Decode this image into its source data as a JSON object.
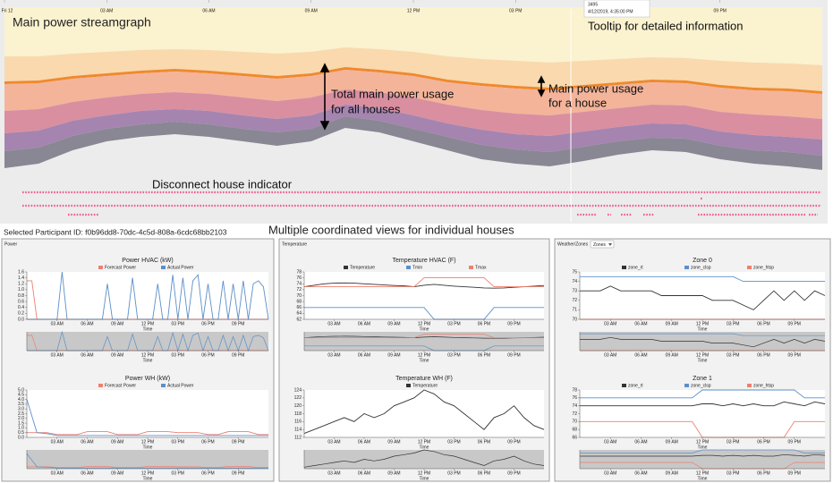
{
  "streamgraph": {
    "title": "Main power streamgraph",
    "xlim": [
      0,
      24
    ],
    "ylim": [
      0,
      182
    ],
    "xticks": [
      {
        "value": 0,
        "label": "Fri 12"
      },
      {
        "value": 3,
        "label": "03 AM"
      },
      {
        "value": 6,
        "label": "06 AM"
      },
      {
        "value": 9,
        "label": "09 AM"
      },
      {
        "value": 12,
        "label": "12 PM"
      },
      {
        "value": 15,
        "label": "03 PM"
      },
      {
        "value": 18,
        "label": "06 PM"
      },
      {
        "value": 21,
        "label": "09 PM"
      }
    ],
    "layers": [
      {
        "color": "#fbf2cf",
        "values": [
          55,
          55,
          52,
          50,
          48,
          47,
          48,
          50,
          52,
          50,
          45,
          47,
          50,
          55,
          58,
          60,
          62,
          60,
          58,
          56,
          57,
          60,
          62,
          63,
          65
        ]
      },
      {
        "color": "#f9d9ad",
        "values": [
          28,
          27,
          25,
          24,
          23,
          22,
          23,
          24,
          25,
          24,
          22,
          23,
          24,
          26,
          27,
          28,
          28,
          27,
          26,
          25,
          25,
          27,
          28,
          28,
          29
        ]
      },
      {
        "color": "#f0892d",
        "values": [
          3,
          3,
          3,
          3,
          3,
          3,
          3,
          3,
          3,
          3,
          3,
          3,
          3,
          3,
          3,
          3,
          3,
          3,
          3,
          3,
          3,
          3,
          3,
          3,
          3
        ]
      },
      {
        "color": "#f3b49a",
        "values": [
          30,
          29,
          26,
          24,
          23,
          23,
          23,
          24,
          25,
          24,
          22,
          22,
          24,
          25,
          27,
          28,
          28,
          27,
          26,
          25,
          25,
          27,
          27,
          28,
          28
        ]
      },
      {
        "color": "#d98fa0",
        "values": [
          25,
          24,
          21,
          20,
          19,
          19,
          19,
          20,
          20,
          20,
          17,
          18,
          20,
          21,
          22,
          23,
          23,
          22,
          21,
          21,
          21,
          22,
          23,
          23,
          23
        ]
      },
      {
        "color": "#a584b0",
        "values": [
          20,
          19,
          17,
          15,
          15,
          14,
          15,
          15,
          15,
          15,
          13,
          14,
          15,
          15,
          17,
          17,
          18,
          17,
          16,
          16,
          16,
          16,
          17,
          17,
          18
        ]
      },
      {
        "color": "#8a8794",
        "values": [
          19,
          18,
          16,
          14,
          14,
          14,
          14,
          14,
          15,
          14,
          13,
          13,
          14,
          15,
          16,
          16,
          16,
          16,
          15,
          14,
          15,
          15,
          15,
          16,
          16
        ]
      }
    ]
  },
  "tooltip": {
    "value": 3495,
    "time": "4/12/2019, 4:35:00 PM"
  },
  "annotations": {
    "tooltip": "Tooltip for detailed information",
    "total_1": "Total main power usage",
    "total_2": "for all houses",
    "house_1": "Main power usage",
    "house_2": "for a house",
    "disconnect": "Disconnect house indicator",
    "views": "Multiple coordinated views for individual houses"
  },
  "selected_participant": "Selected Participant ID: f0b96dd8-70dc-4c5d-808a-6cdc68bb2103",
  "time_axis": {
    "xlim": [
      0,
      24
    ],
    "label": "Time",
    "ticks": [
      {
        "value": 3,
        "label": "03 AM"
      },
      {
        "value": 6,
        "label": "06 AM"
      },
      {
        "value": 9,
        "label": "09 AM"
      },
      {
        "value": 12,
        "label": "12 PM"
      },
      {
        "value": 15,
        "label": "03 PM"
      },
      {
        "value": 18,
        "label": "06 PM"
      },
      {
        "value": 21,
        "label": "09 PM"
      }
    ]
  },
  "panels": [
    {
      "label": "Power",
      "charts": [
        {
          "title": "Power HVAC (kW)",
          "ylim": [
            0,
            1.6
          ],
          "yticks": [
            {
              "value": 0,
              "label": "0.0"
            },
            {
              "value": 0.2,
              "label": "0.2"
            },
            {
              "value": 0.4,
              "label": "0.4"
            },
            {
              "value": 0.6,
              "label": "0.6"
            },
            {
              "value": 0.8,
              "label": "0.8"
            },
            {
              "value": 1,
              "label": "1.0"
            },
            {
              "value": 1.2,
              "label": "1.2"
            },
            {
              "value": 1.4,
              "label": "1.4"
            },
            {
              "value": 1.6,
              "label": "1.6"
            }
          ],
          "series": [
            {
              "name": "Forecast Power",
              "color": "#ef7f6f",
              "values": [
                1.3,
                1.3,
                0,
                0,
                0,
                0,
                0,
                0,
                0,
                0,
                0,
                0,
                0,
                0,
                0,
                0,
                0,
                0,
                0,
                0,
                0,
                0,
                0,
                0,
                0,
                0,
                0,
                0,
                0,
                0,
                0,
                0,
                0,
                0,
                0,
                0,
                0,
                0,
                0,
                0,
                0,
                0,
                0,
                0,
                0,
                0,
                0,
                0,
                0
              ]
            },
            {
              "name": "Actual Power",
              "color": "#5b8fc9",
              "values": [
                0,
                0,
                0,
                0,
                0,
                0,
                0,
                1.6,
                0,
                0,
                0,
                0,
                0,
                0,
                0,
                0,
                1.2,
                0,
                0,
                0,
                0,
                1.4,
                0,
                0,
                0,
                0,
                1.2,
                0,
                0,
                1.5,
                0,
                1.4,
                0,
                1.3,
                1.5,
                0,
                1.2,
                0,
                0,
                1.3,
                0,
                1.2,
                0,
                1.3,
                0,
                1.2,
                1.3,
                1.1,
                0
              ]
            }
          ]
        },
        {
          "title": "Power WH (kW)",
          "ylim": [
            0,
            5
          ],
          "yticks": [
            {
              "value": 0,
              "label": "0.0"
            },
            {
              "value": 0.5,
              "label": "0.5"
            },
            {
              "value": 1,
              "label": "1.0"
            },
            {
              "value": 1.5,
              "label": "1.5"
            },
            {
              "value": 2,
              "label": "2.0"
            },
            {
              "value": 2.5,
              "label": "2.5"
            },
            {
              "value": 3,
              "label": "3.0"
            },
            {
              "value": 3.5,
              "label": "3.5"
            },
            {
              "value": 4,
              "label": "4.0"
            },
            {
              "value": 4.5,
              "label": "4.5"
            },
            {
              "value": 5,
              "label": "5.0"
            }
          ],
          "series": [
            {
              "name": "Forecast Power",
              "color": "#ef7f6f",
              "values": [
                0.5,
                0.5,
                0.5,
                0.3,
                0.3,
                0.3,
                0.6,
                0.6,
                0.6,
                0.3,
                0.3,
                0.3,
                0.6,
                0.6,
                0.6,
                0.5,
                0.5,
                0.5,
                0.3,
                0.3,
                0.6,
                0.6,
                0.6,
                0.3,
                0.3
              ]
            },
            {
              "name": "Actual Power",
              "color": "#5b8fc9",
              "values": [
                4.0,
                0.5,
                0.4,
                0.2,
                0.2,
                0.2,
                0.2,
                0.2,
                0.2,
                0.2,
                0.2,
                0.2,
                0.2,
                0.2,
                0.2,
                0.2,
                0.2,
                0.2,
                0.2,
                0.2,
                0.2,
                0.2,
                0.2,
                0.2,
                0.2
              ]
            }
          ]
        }
      ]
    },
    {
      "label": "Temperature",
      "charts": [
        {
          "title": "Temperature HVAC (F)",
          "ylim": [
            62,
            78
          ],
          "yticks": [
            62,
            64,
            66,
            68,
            70,
            72,
            74,
            76,
            78
          ],
          "series": [
            {
              "name": "Temperature",
              "color": "#333333",
              "values": [
                73,
                73.5,
                74,
                74.2,
                74.3,
                74.2,
                74,
                73.8,
                73.6,
                73.4,
                73.3,
                73,
                73.5,
                73.8,
                73.5,
                73.2,
                73,
                72.8,
                72.6,
                72.5,
                72.6,
                72.8,
                73,
                73.2,
                73.4
              ]
            },
            {
              "name": "Tmin",
              "color": "#5b8fc9",
              "values": [
                66,
                66,
                66,
                66,
                66,
                66,
                66,
                66,
                66,
                66,
                66,
                66,
                66,
                62,
                62,
                62,
                62,
                62,
                62,
                66,
                66,
                66,
                66,
                66,
                66
              ]
            },
            {
              "name": "Tmax",
              "color": "#ef7f6f",
              "values": [
                73,
                73,
                73,
                73,
                73,
                73,
                73,
                73,
                73,
                73,
                73,
                73,
                76,
                76,
                76,
                76,
                76,
                76,
                76,
                73,
                73,
                73,
                73,
                73,
                73
              ]
            }
          ]
        },
        {
          "title": "Temperature WH (F)",
          "ylim": [
            112,
            124
          ],
          "yticks": [
            112,
            114,
            116,
            118,
            120,
            122,
            124
          ],
          "series": [
            {
              "name": "Temperature",
              "color": "#333333",
              "values": [
                113,
                114,
                115,
                116,
                117,
                116,
                118,
                117,
                118,
                120,
                121,
                122,
                124,
                123,
                121,
                120,
                118,
                116,
                114,
                117,
                118,
                120,
                117,
                115,
                114
              ]
            }
          ]
        }
      ]
    },
    {
      "label": "Weather/Zones",
      "dropdown": "Zones",
      "charts": [
        {
          "title": "Zone 0",
          "ylim": [
            70,
            75
          ],
          "yticks": [
            70,
            71,
            72,
            73,
            74,
            75
          ],
          "series": [
            {
              "name": "zone_rt",
              "color": "#333333",
              "values": [
                73,
                73,
                73,
                73.5,
                73,
                73,
                73,
                73,
                72.5,
                72.5,
                72.5,
                72.5,
                72.5,
                72,
                72,
                72,
                71.5,
                71,
                72,
                73,
                72,
                73,
                72,
                73,
                72.5
              ]
            },
            {
              "name": "zone_clsp",
              "color": "#5b8fc9",
              "values": [
                74.5,
                74.5,
                74.5,
                74.5,
                74.5,
                74.5,
                74.5,
                74.5,
                74.5,
                74.5,
                74.5,
                74.5,
                74.5,
                74.5,
                74.5,
                74.5,
                74,
                74,
                74,
                74,
                74,
                74,
                74,
                74,
                74
              ]
            },
            {
              "name": "zone_htsp",
              "color": "#ef7f6f",
              "values": [
                70,
                70,
                70,
                70,
                70,
                70,
                70,
                70,
                70,
                70,
                70,
                70,
                70,
                70,
                70,
                70,
                70,
                70,
                70,
                70,
                70,
                70,
                70,
                70,
                70
              ]
            }
          ]
        },
        {
          "title": "Zone 1",
          "ylim": [
            66,
            78
          ],
          "yticks": [
            66,
            68,
            70,
            72,
            74,
            76,
            78
          ],
          "series": [
            {
              "name": "zone_rt",
              "color": "#333333",
              "values": [
                74,
                74,
                74,
                74,
                74,
                74,
                74,
                74,
                74,
                74,
                74,
                74,
                74.5,
                74.5,
                74,
                74.5,
                74,
                74.5,
                74,
                74,
                75,
                74.5,
                74,
                75,
                74.5
              ]
            },
            {
              "name": "zone_clsp",
              "color": "#5b8fc9",
              "values": [
                76,
                76,
                76,
                76,
                76,
                76,
                76,
                76,
                76,
                76,
                76,
                76,
                78,
                78,
                78,
                78,
                78,
                78,
                78,
                78,
                78,
                78,
                76,
                76,
                76
              ]
            },
            {
              "name": "zone_htsp",
              "color": "#ef7f6f",
              "values": [
                70,
                70,
                70,
                70,
                70,
                70,
                70,
                70,
                70,
                70,
                70,
                70,
                66,
                66,
                66,
                66,
                66,
                66,
                66,
                66,
                66,
                70,
                70,
                70,
                70
              ]
            }
          ]
        }
      ]
    }
  ]
}
